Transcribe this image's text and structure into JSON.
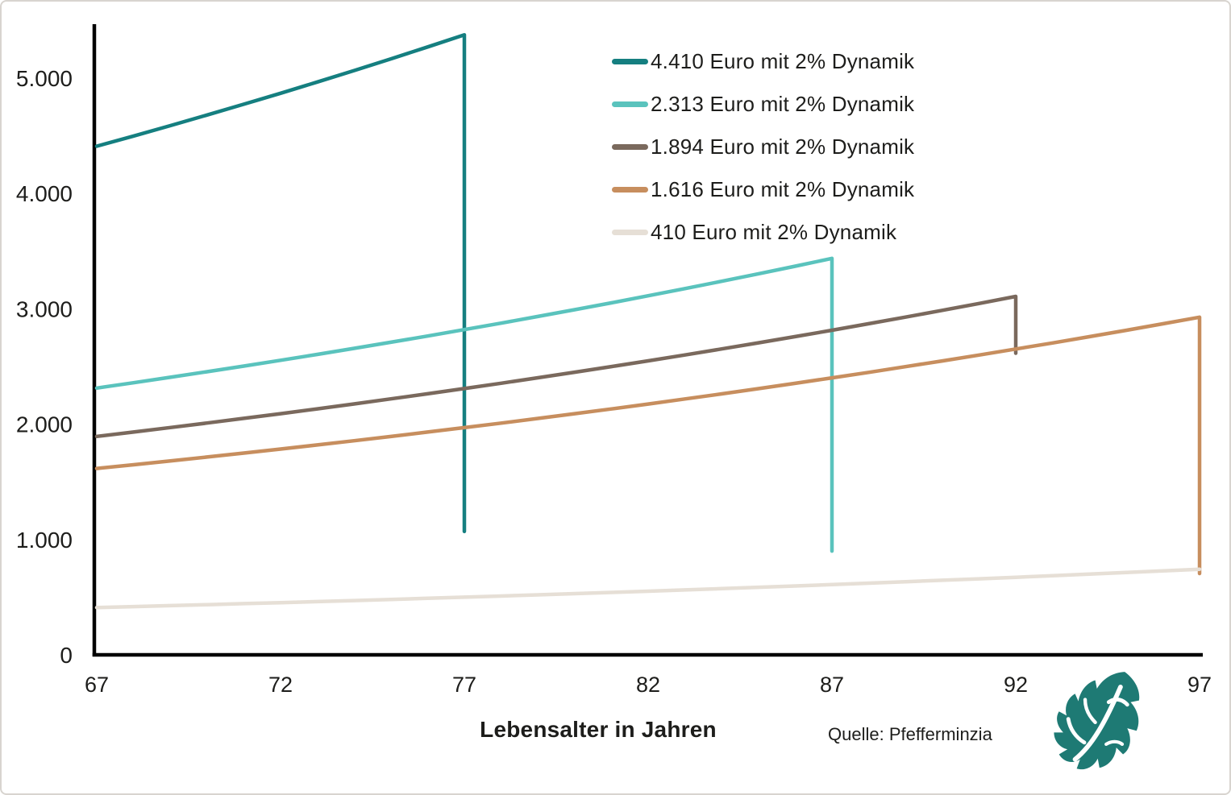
{
  "chart_data": {
    "type": "line",
    "title": "",
    "xlabel": "Lebensalter in Jahren",
    "ylabel": "",
    "x_axis": {
      "min": 67,
      "max": 97,
      "ticks": [
        67,
        72,
        77,
        82,
        87,
        92,
        97
      ]
    },
    "y_axis": {
      "min": 0,
      "max": 5500,
      "ticks": [
        {
          "value": 0,
          "label": "0"
        },
        {
          "value": 1000,
          "label": "1.000"
        },
        {
          "value": 2000,
          "label": "2.000"
        },
        {
          "value": 3000,
          "label": "3.000"
        },
        {
          "value": 4000,
          "label": "4.000"
        },
        {
          "value": 5000,
          "label": "5.000"
        }
      ]
    },
    "grid": false,
    "legend_position": "top-right",
    "series": [
      {
        "name": "4.410 Euro mit 2% Dynamik",
        "color": "#157f80",
        "start_age": 67,
        "end_age": 77,
        "start_value": 4410,
        "growth_pct": 2,
        "peak_value": 5376,
        "drop_to": 1070
      },
      {
        "name": "2.313 Euro mit 2% Dynamik",
        "color": "#5ac3bd",
        "start_age": 67,
        "end_age": 87,
        "start_value": 2313,
        "growth_pct": 2,
        "peak_value": 3437,
        "drop_to": 900
      },
      {
        "name": "1.894 Euro mit 2% Dynamik",
        "color": "#7a695d",
        "start_age": 67,
        "end_age": 92,
        "start_value": 1894,
        "growth_pct": 2,
        "peak_value": 3107,
        "drop_to": 2615
      },
      {
        "name": "1.616 Euro mit 2% Dynamik",
        "color": "#c78e5e",
        "start_age": 67,
        "end_age": 97,
        "start_value": 1616,
        "growth_pct": 2,
        "peak_value": 2927,
        "drop_to": 705
      },
      {
        "name": "410 Euro mit 2% Dynamik",
        "color": "#e6dfd6",
        "start_age": 67,
        "end_age": 97,
        "start_value": 410,
        "growth_pct": 2,
        "peak_value": 743,
        "drop_to": null
      }
    ]
  },
  "footer": {
    "source": "Quelle: Pfefferminzia"
  },
  "colors": {
    "axis": "#000000",
    "text": "#1d1d1b",
    "logo": "#1e7a74"
  }
}
